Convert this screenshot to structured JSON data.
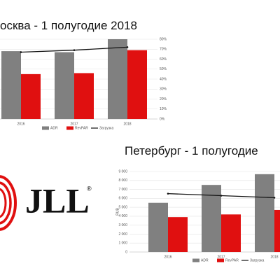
{
  "chart_data": [
    {
      "type": "bar",
      "title": "осква - 1 полугодие 2018",
      "categories": [
        "2016",
        "2017",
        "2018"
      ],
      "series": [
        {
          "name": "ADR",
          "type": "bar",
          "color": "#808080",
          "values": [
            68,
            67,
            80
          ]
        },
        {
          "name": "RevPAR",
          "type": "bar",
          "color": "#e01010",
          "values": [
            45,
            46,
            69
          ]
        },
        {
          "name": "Загрузка",
          "type": "line",
          "axis": "y2",
          "color": "#111111",
          "values": [
            67,
            69,
            72
          ]
        }
      ],
      "ylim": [
        0,
        80
      ],
      "y2lim": [
        0,
        80
      ],
      "y2ticks": [
        {
          "value": 0,
          "label": "0%"
        },
        {
          "value": 10,
          "label": "10%"
        },
        {
          "value": 20,
          "label": "20%"
        },
        {
          "value": 30,
          "label": "30%"
        },
        {
          "value": 40,
          "label": "40%"
        },
        {
          "value": 50,
          "label": "50%"
        },
        {
          "value": 60,
          "label": "60%"
        },
        {
          "value": 70,
          "label": "70%"
        },
        {
          "value": 80,
          "label": "80%"
        }
      ],
      "grid": true
    },
    {
      "type": "bar",
      "title": "Петербург - 1 полугодие",
      "y_label": "RUB",
      "categories": [
        "2016",
        "2017",
        "2018"
      ],
      "series": [
        {
          "name": "ADR",
          "type": "bar",
          "color": "#808080",
          "values": [
            5500,
            7500,
            8700
          ]
        },
        {
          "name": "RevPAR",
          "type": "bar",
          "color": "#e01010",
          "values": [
            3900,
            4200,
            4700
          ]
        },
        {
          "name": "Загрузка",
          "type": "line",
          "axis": "y2",
          "color": "#111111",
          "values": [
            58,
            56,
            54
          ]
        }
      ],
      "ylim": [
        0,
        9000
      ],
      "yticks": [
        0,
        {
          "value": 1000,
          "label": "1 000"
        },
        {
          "value": 2000,
          "label": "2 000"
        },
        {
          "value": 3000,
          "label": "3 000"
        },
        {
          "value": 4000,
          "label": "4 000"
        },
        {
          "value": 5000,
          "label": "5 000"
        },
        {
          "value": 6000,
          "label": "6 000"
        },
        {
          "value": 7000,
          "label": "7 000"
        },
        {
          "value": 8000,
          "label": "8 000"
        },
        {
          "value": 9000,
          "label": "9 000"
        }
      ],
      "y2lim": [
        0,
        80
      ],
      "grid": true
    }
  ],
  "logo": {
    "text": "JLL",
    "mark": "®"
  }
}
